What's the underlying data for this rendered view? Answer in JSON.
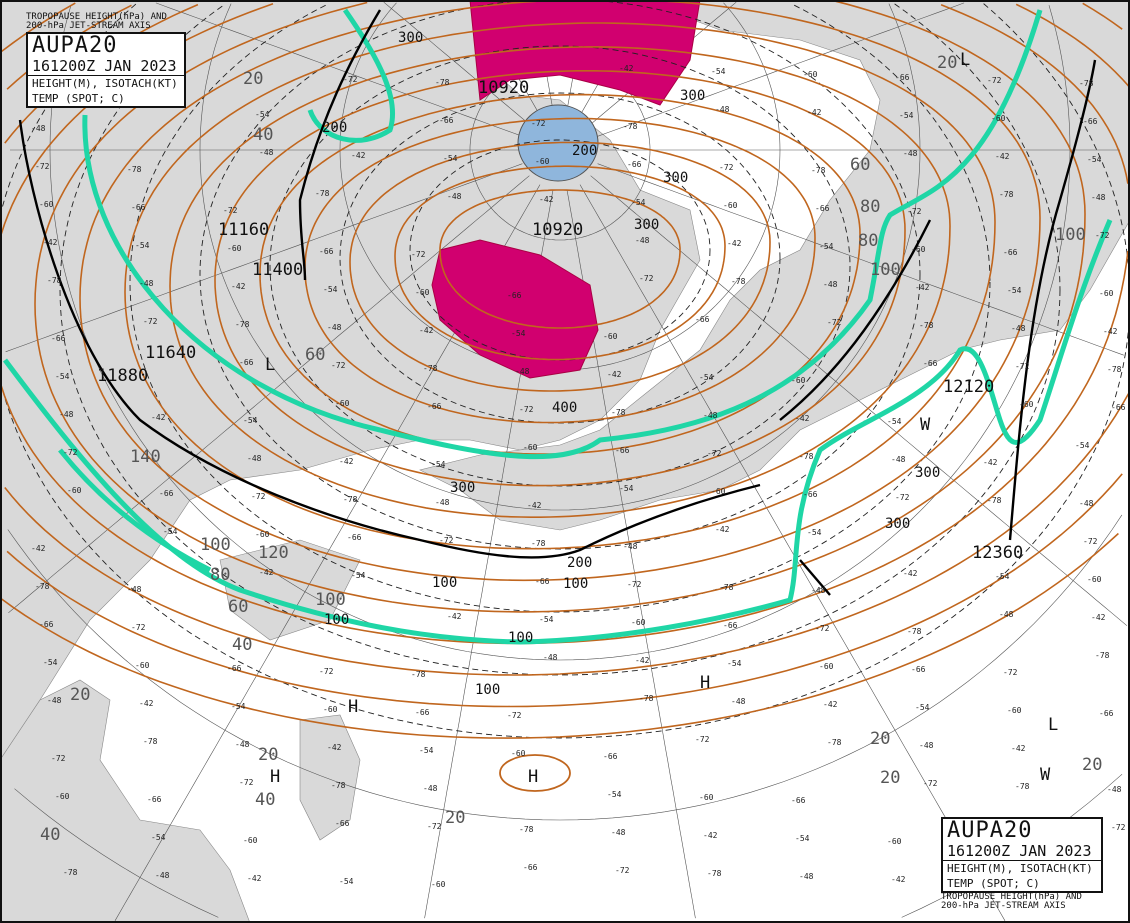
{
  "product": {
    "id": "AUPA20",
    "valid_time": "161200Z JAN 2023",
    "line1": "HEIGHT(M), ISOTACH(KT)",
    "line2": "TEMP (SPOT; C)",
    "caption_line1": "TROPOPAUSE HEIGHT(hPa) AND",
    "caption_line2": "200-hPa JET-STREAM AXIS"
  },
  "colors": {
    "land": "#d9d9d9",
    "height_contour": "#c0661e",
    "jet_isotach_100kt": "#1fd6a6",
    "high_tropopause_fill": "#d1006f",
    "low_tropopause_fill": "#8fb6dc",
    "isotherm": "#111111"
  },
  "height_labels": [
    "10920",
    "10920",
    "11160",
    "11400",
    "11640",
    "11880",
    "12120",
    "12360"
  ],
  "isotach_labels": [
    "20",
    "40",
    "60",
    "80",
    "100",
    "120",
    "140",
    "100",
    "80",
    "60",
    "40",
    "20",
    "20",
    "20",
    "20",
    "40",
    "100",
    "80",
    "60",
    "20",
    "100",
    "20",
    "20",
    "40"
  ],
  "tropopause_labels": [
    "300",
    "200",
    "300",
    "300",
    "300",
    "200",
    "400",
    "300",
    "200",
    "100",
    "100",
    "100",
    "300",
    "300",
    "100",
    "100"
  ],
  "pressure_centers": [
    "H",
    "H",
    "L",
    "L",
    "H",
    "H",
    "L",
    "W",
    "W"
  ],
  "spot_temps": [
    "-54",
    "-60",
    "-66",
    "-72",
    "-78",
    "-48",
    "-42"
  ]
}
